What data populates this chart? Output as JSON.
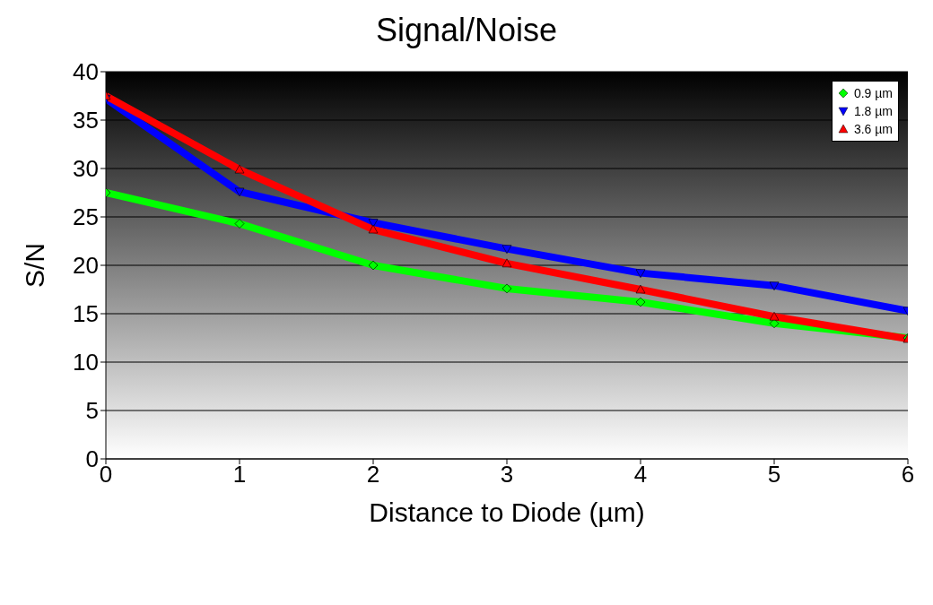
{
  "chart_data": {
    "type": "line",
    "title": "Signal/Noise",
    "xlabel": "Distance to Diode (µm)",
    "ylabel": "S/N",
    "x": [
      0,
      1,
      2,
      3,
      4,
      5,
      6
    ],
    "series": [
      {
        "name": "0.9 µm",
        "color": "#00ff00",
        "marker": "diamond",
        "values": [
          27.5,
          24.3,
          20.0,
          17.6,
          16.2,
          14.0,
          12.5
        ]
      },
      {
        "name": "1.8 µm",
        "color": "#0000ff",
        "marker": "triangle-down",
        "values": [
          37.2,
          27.6,
          24.4,
          21.7,
          19.2,
          17.9,
          15.3
        ]
      },
      {
        "name": "3.6 µm",
        "color": "#ff0000",
        "marker": "triangle",
        "values": [
          37.5,
          29.9,
          23.7,
          20.2,
          17.5,
          14.7,
          12.4
        ]
      }
    ],
    "xlim": [
      0,
      6
    ],
    "xticks": [
      0,
      1,
      2,
      3,
      4,
      5,
      6
    ],
    "ylim": [
      0,
      40
    ],
    "yticks": [
      0,
      5,
      10,
      15,
      20,
      25,
      30,
      35,
      40
    ],
    "grid": "y",
    "legend": "top right",
    "line_style": "solid"
  }
}
